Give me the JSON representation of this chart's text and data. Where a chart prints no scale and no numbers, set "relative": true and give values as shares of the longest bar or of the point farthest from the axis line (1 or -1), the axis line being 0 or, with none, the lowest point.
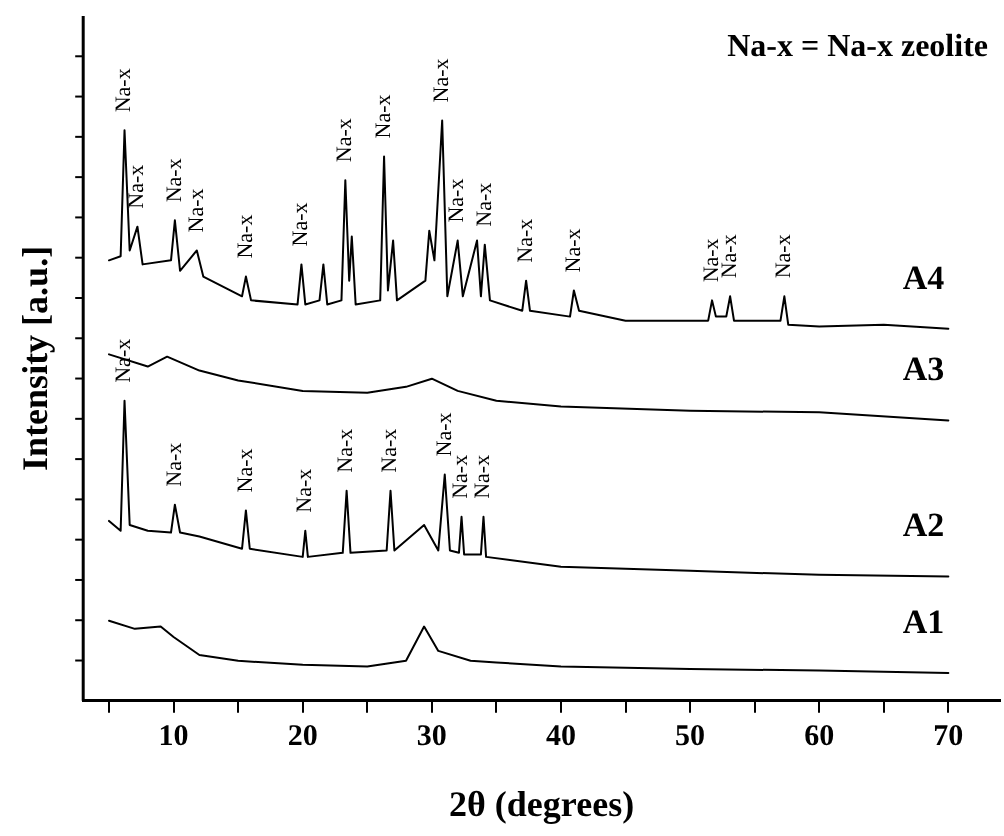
{
  "chart_data": {
    "type": "line",
    "relative": true,
    "xlabel": "2θ (degrees)",
    "ylabel": "Intensity [a.u.]",
    "xlim": [
      3,
      74
    ],
    "xticks": [
      {
        "value": 5,
        "label": null
      },
      10,
      {
        "value": 15,
        "label": null
      },
      20,
      {
        "value": 25,
        "label": null
      },
      30,
      {
        "value": 35,
        "label": null
      },
      40,
      {
        "value": 45,
        "label": null
      },
      50,
      {
        "value": 55,
        "label": null
      },
      60,
      {
        "value": 65,
        "label": null
      },
      70
    ],
    "legend": false,
    "grid": false,
    "marker": "none",
    "line_style": "solid",
    "series": [
      {
        "name": "A1",
        "color": "#000000",
        "x": [
          5,
          7,
          9,
          10,
          12,
          15,
          20,
          25,
          28,
          29.4,
          30.5,
          33,
          35,
          40,
          50,
          60,
          70
        ],
        "values": [
          0.138,
          0.124,
          0.128,
          0.11,
          0.079,
          0.069,
          0.062,
          0.059,
          0.069,
          0.128,
          0.086,
          0.069,
          0.066,
          0.059,
          0.055,
          0.052,
          0.048
        ]
      },
      {
        "name": "A2",
        "color": "#000000",
        "x": [
          5,
          5.9,
          6.2,
          6.6,
          8,
          9.8,
          10.1,
          10.5,
          12,
          15.3,
          15.6,
          15.9,
          20,
          20.2,
          20.4,
          23.1,
          23.4,
          23.7,
          26.5,
          26.8,
          27.1,
          29.4,
          30.5,
          31,
          31.4,
          32.1,
          32.3,
          32.5,
          33.8,
          34,
          34.2,
          40,
          50,
          60,
          70
        ],
        "values": [
          0.31,
          0.293,
          0.517,
          0.303,
          0.293,
          0.29,
          0.338,
          0.29,
          0.283,
          0.262,
          0.328,
          0.262,
          0.248,
          0.293,
          0.248,
          0.255,
          0.362,
          0.255,
          0.259,
          0.362,
          0.259,
          0.303,
          0.259,
          0.39,
          0.259,
          0.255,
          0.317,
          0.252,
          0.252,
          0.317,
          0.248,
          0.231,
          0.224,
          0.217,
          0.214
        ]
      },
      {
        "name": "A3",
        "color": "#000000",
        "x": [
          5,
          8,
          9.5,
          12,
          15,
          20,
          25,
          28,
          30,
          32,
          35,
          40,
          50,
          60,
          70
        ],
        "values": [
          0.597,
          0.576,
          0.593,
          0.569,
          0.552,
          0.534,
          0.531,
          0.541,
          0.555,
          0.534,
          0.517,
          0.507,
          0.5,
          0.497,
          0.483
        ]
      },
      {
        "name": "A4",
        "color": "#000000",
        "x": [
          5,
          5.9,
          6.2,
          6.6,
          7.2,
          7.6,
          9.8,
          10.1,
          10.5,
          11.8,
          12.3,
          15.3,
          15.6,
          16,
          19.6,
          19.9,
          20.2,
          21.3,
          21.6,
          21.9,
          23,
          23.3,
          23.6,
          23.8,
          24.1,
          26,
          26.3,
          26.6,
          27,
          27.3,
          29.5,
          29.8,
          30.2,
          30.8,
          31.2,
          32,
          32.4,
          33.5,
          33.8,
          34.1,
          34.5,
          37,
          37.3,
          37.6,
          40.7,
          41,
          41.4,
          45,
          51.4,
          51.7,
          52,
          52.8,
          53.1,
          53.4,
          57,
          57.3,
          57.6,
          60,
          65,
          70
        ],
        "values": [
          0.759,
          0.766,
          0.983,
          0.776,
          0.817,
          0.752,
          0.759,
          0.828,
          0.741,
          0.776,
          0.731,
          0.697,
          0.731,
          0.69,
          0.683,
          0.752,
          0.683,
          0.69,
          0.752,
          0.683,
          0.69,
          0.897,
          0.724,
          0.8,
          0.683,
          0.69,
          0.938,
          0.707,
          0.793,
          0.69,
          0.724,
          0.81,
          0.759,
          1.0,
          0.697,
          0.793,
          0.697,
          0.793,
          0.697,
          0.786,
          0.69,
          0.672,
          0.724,
          0.672,
          0.662,
          0.707,
          0.672,
          0.655,
          0.655,
          0.69,
          0.662,
          0.662,
          0.697,
          0.655,
          0.655,
          0.697,
          0.648,
          0.645,
          0.648,
          0.641
        ]
      }
    ],
    "annotations": [
      "Na-x = Na-x zeolite",
      {
        "text": "Na-x",
        "x": 6.2,
        "y": 0.517
      },
      {
        "text": "Na-x",
        "x": 10.1,
        "y": 0.338
      },
      {
        "text": "Na-x",
        "x": 15.6,
        "y": 0.328
      },
      {
        "text": "Na-x",
        "x": 20.2,
        "y": 0.293
      },
      {
        "text": "Na-x",
        "x": 23.4,
        "y": 0.362
      },
      {
        "text": "Na-x",
        "x": 26.8,
        "y": 0.362
      },
      {
        "text": "Na-x",
        "x": 31,
        "y": 0.39
      },
      {
        "text": "Na-x",
        "x": 32.3,
        "y": 0.317
      },
      {
        "text": "Na-x",
        "x": 34,
        "y": 0.317
      },
      {
        "text": "Na-x",
        "x": 6.2,
        "y": 0.983
      },
      {
        "text": "Na-x",
        "x": 7.2,
        "y": 0.817
      },
      {
        "text": "Na-x",
        "x": 10.1,
        "y": 0.828
      },
      {
        "text": "Na-x",
        "x": 11.8,
        "y": 0.776
      },
      {
        "text": "Na-x",
        "x": 15.6,
        "y": 0.731
      },
      {
        "text": "Na-x",
        "x": 19.9,
        "y": 0.752
      },
      {
        "text": "Na-x",
        "x": 23.3,
        "y": 0.897
      },
      {
        "text": "Na-x",
        "x": 26.3,
        "y": 0.938
      },
      {
        "text": "Na-x",
        "x": 30.8,
        "y": 1.0
      },
      {
        "text": "Na-x",
        "x": 32,
        "y": 0.793
      },
      {
        "text": "Na-x",
        "x": 34.1,
        "y": 0.786
      },
      {
        "text": "Na-x",
        "x": 37.3,
        "y": 0.724
      },
      {
        "text": "Na-x",
        "x": 41,
        "y": 0.707
      },
      {
        "text": "Na-x",
        "x": 51.7,
        "y": 0.69
      },
      {
        "text": "Na-x",
        "x": 53.1,
        "y": 0.697
      },
      {
        "text": "Na-x",
        "x": 57.3,
        "y": 0.697
      }
    ]
  }
}
